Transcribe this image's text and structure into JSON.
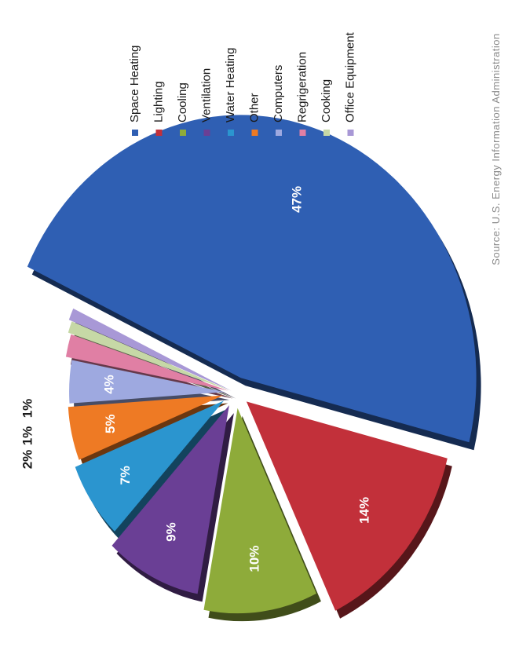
{
  "chart_data": {
    "type": "pie",
    "categories": [
      "Space Heating",
      "Lighting",
      "Cooling",
      "Ventilation",
      "Water Heating",
      "Other",
      "Computers",
      "Regrigeration",
      "Cooking",
      "Office Equipment"
    ],
    "values": [
      47,
      14,
      10,
      9,
      7,
      5,
      4,
      2,
      1,
      1
    ],
    "labels": [
      "47%",
      "14%",
      "10%",
      "9%",
      "7%",
      "5%",
      "4%",
      "2%",
      "1%",
      "1%"
    ],
    "colors": [
      "#2f5fb3",
      "#c2303a",
      "#8eab3a",
      "#6a3f95",
      "#2b95cf",
      "#ee7a24",
      "#9ea9e0",
      "#e07fa4",
      "#c6d8a6",
      "#a898d6"
    ],
    "legend_position": "top-right",
    "orientation": "rotated-90-counterclockwise",
    "exploded": true
  },
  "source": "Source: U.S. Energy Information Administration"
}
